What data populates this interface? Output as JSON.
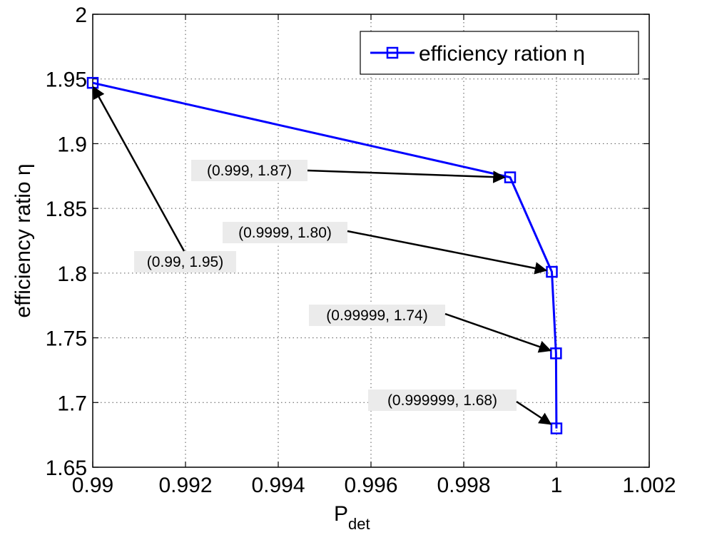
{
  "chart_data": {
    "type": "line",
    "xlabel": "P",
    "xlabel_sub": "det",
    "ylabel": "efficiency ratio η",
    "xlim": [
      0.99,
      1.002
    ],
    "ylim": [
      1.65,
      2.0
    ],
    "xticks": [
      0.99,
      0.992,
      0.994,
      0.996,
      0.998,
      1.0,
      1.002
    ],
    "xtick_labels": [
      "0.99",
      "0.992",
      "0.994",
      "0.996",
      "0.998",
      "1",
      "1.002"
    ],
    "yticks": [
      1.65,
      1.7,
      1.75,
      1.8,
      1.85,
      1.9,
      1.95,
      2.0
    ],
    "ytick_labels": [
      "1.65",
      "1.7",
      "1.75",
      "1.8",
      "1.85",
      "1.9",
      "1.95",
      "2"
    ],
    "grid": true,
    "legend_position": "top-right",
    "series": [
      {
        "name": "efficiency ration η",
        "color": "#0000ff",
        "marker": "square",
        "x": [
          0.99,
          0.999,
          0.9999,
          0.99999,
          0.999999
        ],
        "y": [
          1.947,
          1.874,
          1.801,
          1.738,
          1.68
        ]
      }
    ],
    "annotations": [
      {
        "text": "(0.99, 1.95)",
        "x": 0.99,
        "y": 1.947
      },
      {
        "text": "(0.999, 1.87)",
        "x": 0.999,
        "y": 1.874
      },
      {
        "text": "(0.9999, 1.80)",
        "x": 0.9999,
        "y": 1.801
      },
      {
        "text": "(0.99999, 1.74)",
        "x": 0.99999,
        "y": 1.738
      },
      {
        "text": "(0.999999, 1.68)",
        "x": 0.999999,
        "y": 1.68
      }
    ]
  }
}
